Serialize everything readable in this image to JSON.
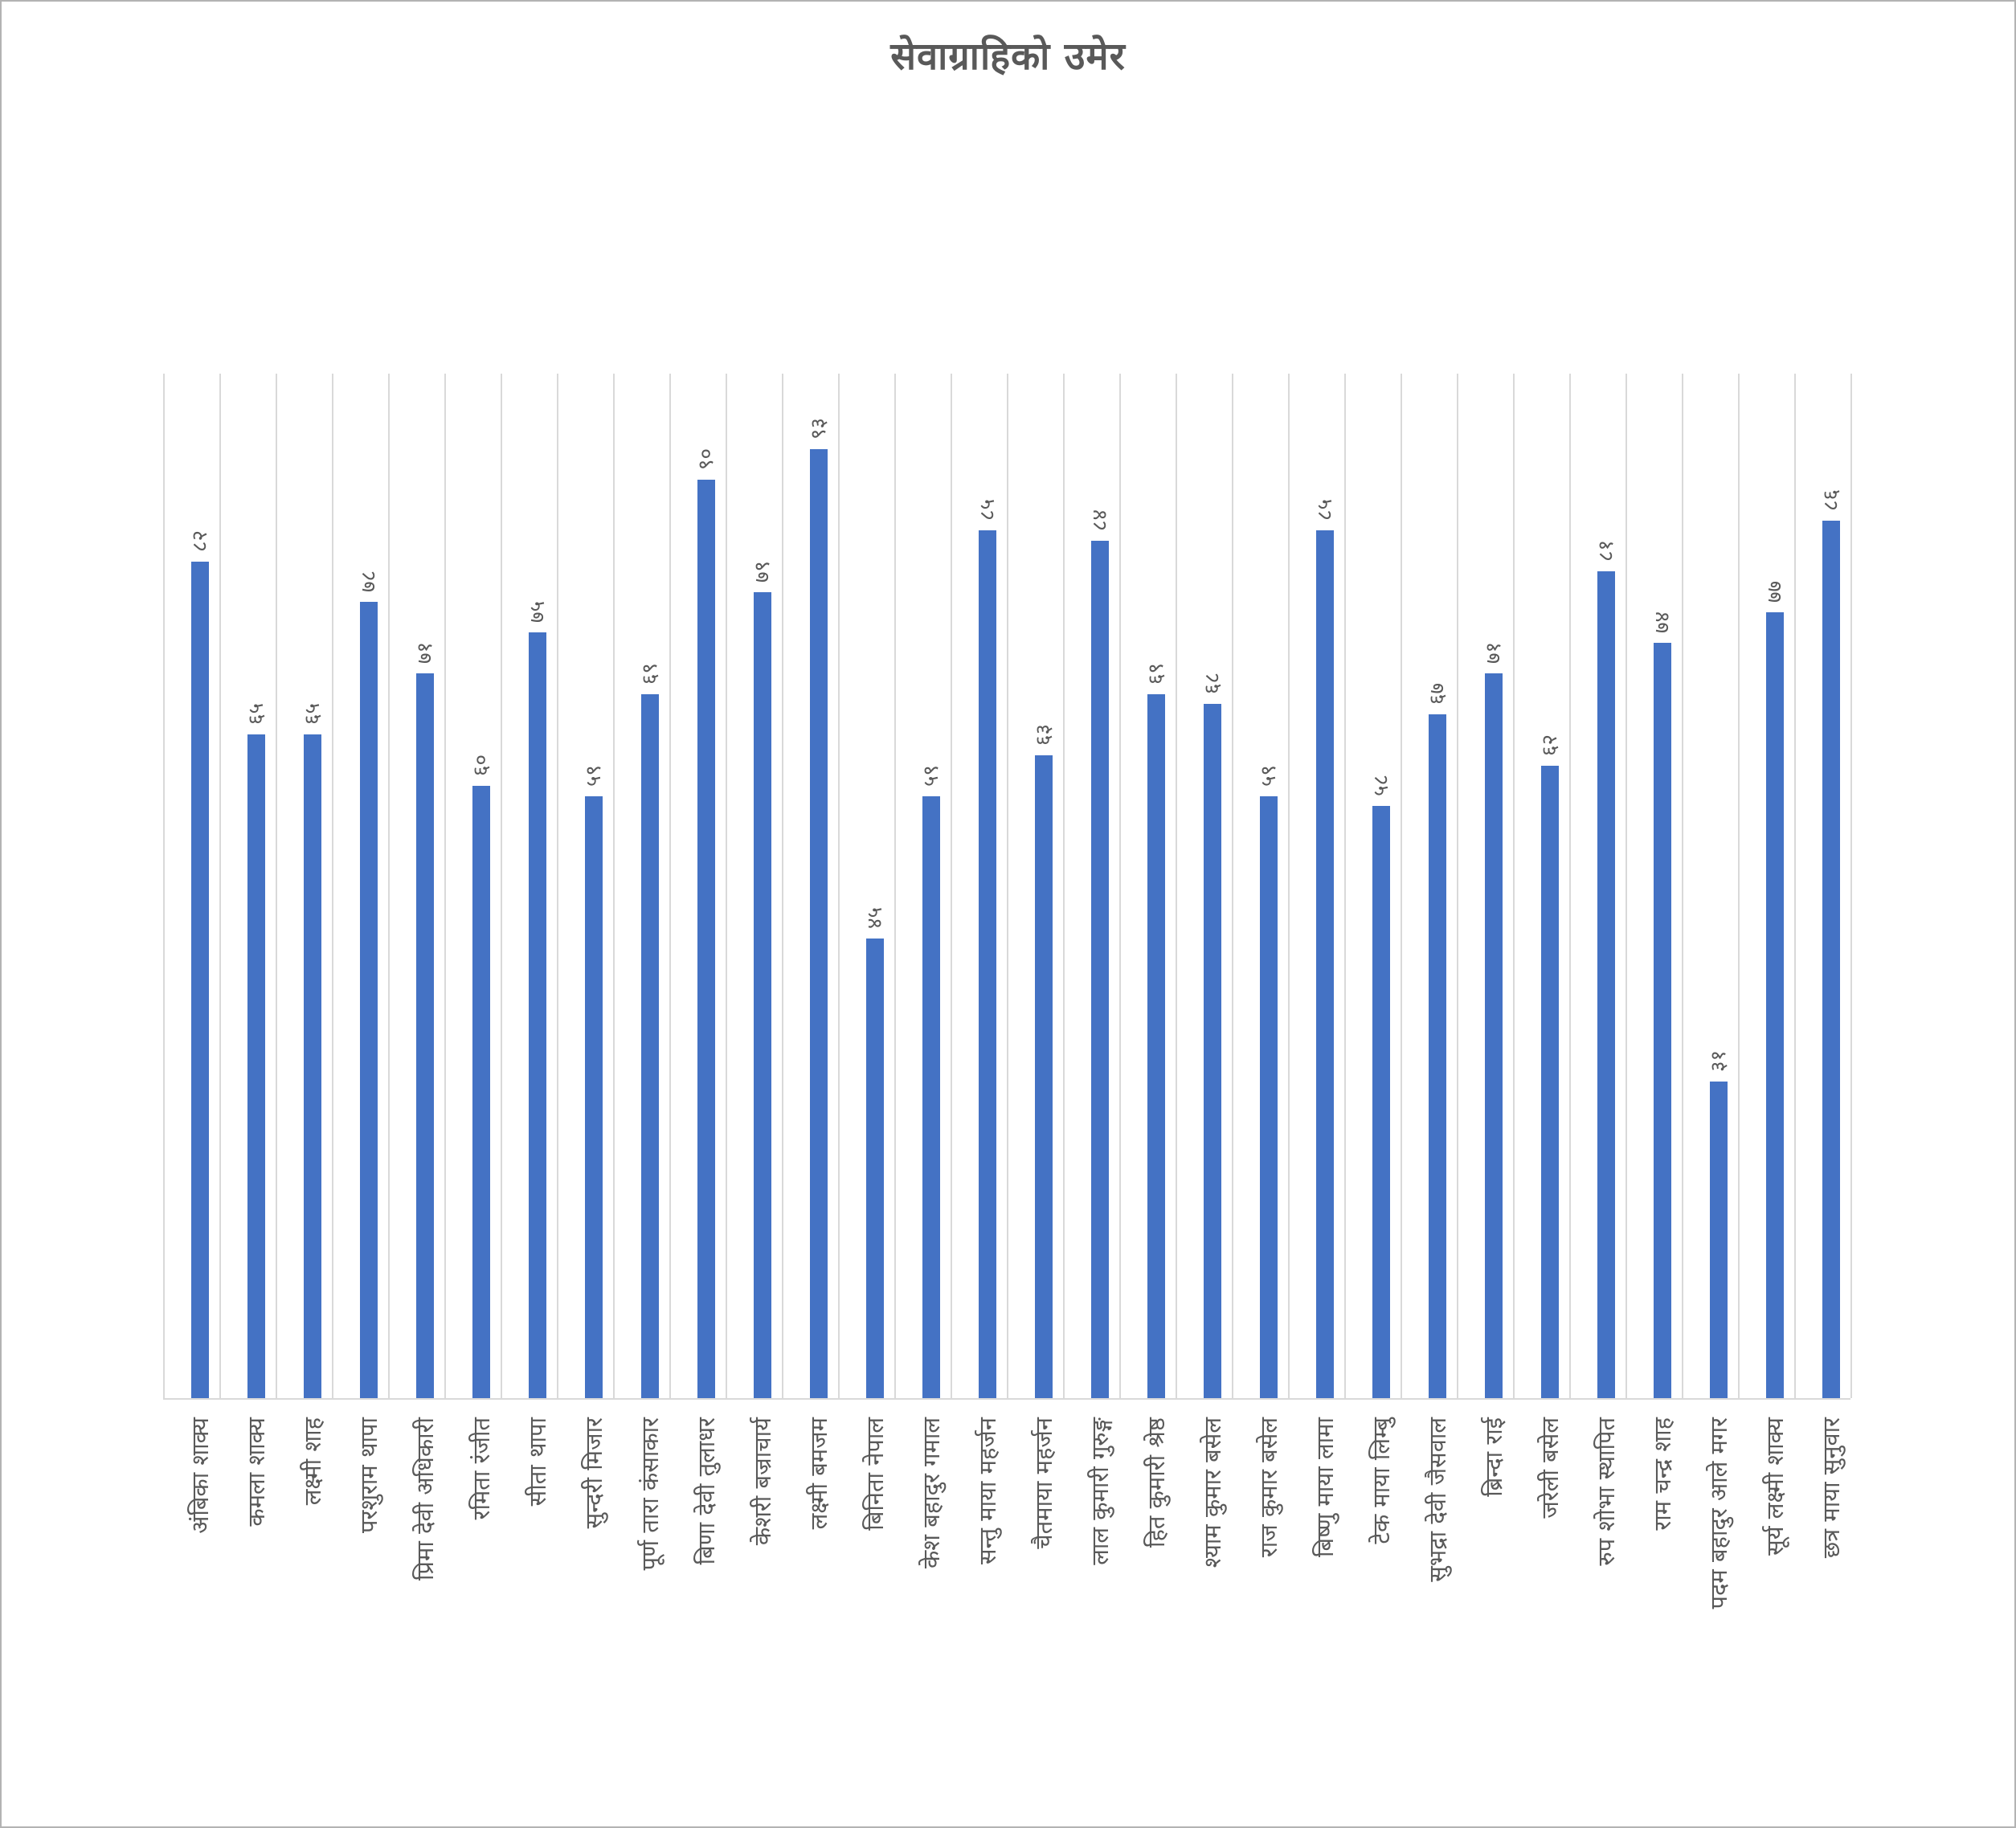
{
  "title": "सेवाग्राहिको  उमेर",
  "chart_data": {
    "type": "bar",
    "title": "सेवाग्राहिको उमेर",
    "xlabel": "",
    "ylabel": "",
    "ylim": [
      0,
      100
    ],
    "grid": "vertical-category-gridlines",
    "legend": "none",
    "bar_color": "#4472C4",
    "text_color": "#595959",
    "gridline_color": "#D9D9D9",
    "label_rotation": "90deg-bottom-to-top",
    "categories": [
      "अंबिका शाक्य",
      "कमला शाक्य",
      "लक्ष्मी शाह",
      "परशुराम थापा",
      "प्रिमा देवी अधिकारी",
      "रमिता रंजीत",
      "सीता थापा",
      "सुन्दरी मिजार",
      "पूर्ण तारा कंसाकार",
      "बिणा देवी तुलाधर",
      "केशरी बज्राचार्य",
      "लक्ष्मी बमजम",
      "बिनिता नेपाल",
      "केश बहादुर गमाल",
      "सन्तु माया महर्जन",
      "चैतमाया महर्जन",
      "लाल कुमारी गुरुङ्ग",
      "हित कुमारी श्रेष्ठ",
      "श्याम कुमार बसेल",
      "राज कुमार बसेल",
      "बिष्णु माया लामा",
      "टेक माया लिम्बु",
      "सुभद्रा देवी जैसवाल",
      "ब्रिन्दा राई",
      "जरेली बसेल",
      "रुप शोभा स्थापित",
      "राम चन्द्र शाह",
      "पदम बहादुर आले मगर",
      "सूर्य लक्ष्मी शाक्य",
      "छत्र माया सुनुवार"
    ],
    "values": [
      82,
      65,
      65,
      78,
      71,
      60,
      75,
      59,
      69,
      90,
      79,
      93,
      45,
      59,
      85,
      63,
      84,
      69,
      68,
      59,
      85,
      58,
      67,
      71,
      62,
      81,
      74,
      31,
      77,
      86
    ],
    "value_labels": [
      "८२",
      "६५",
      "६५",
      "७८",
      "७१",
      "६०",
      "७५",
      "५९",
      "६९",
      "९०",
      "७९",
      "९३",
      "४५",
      "५९",
      "८५",
      "६३",
      "८४",
      "६९",
      "६८",
      "५९",
      "८५",
      "५८",
      "६७",
      "७१",
      "६२",
      "८१",
      "७४",
      "३१",
      "७७",
      "८६"
    ]
  }
}
